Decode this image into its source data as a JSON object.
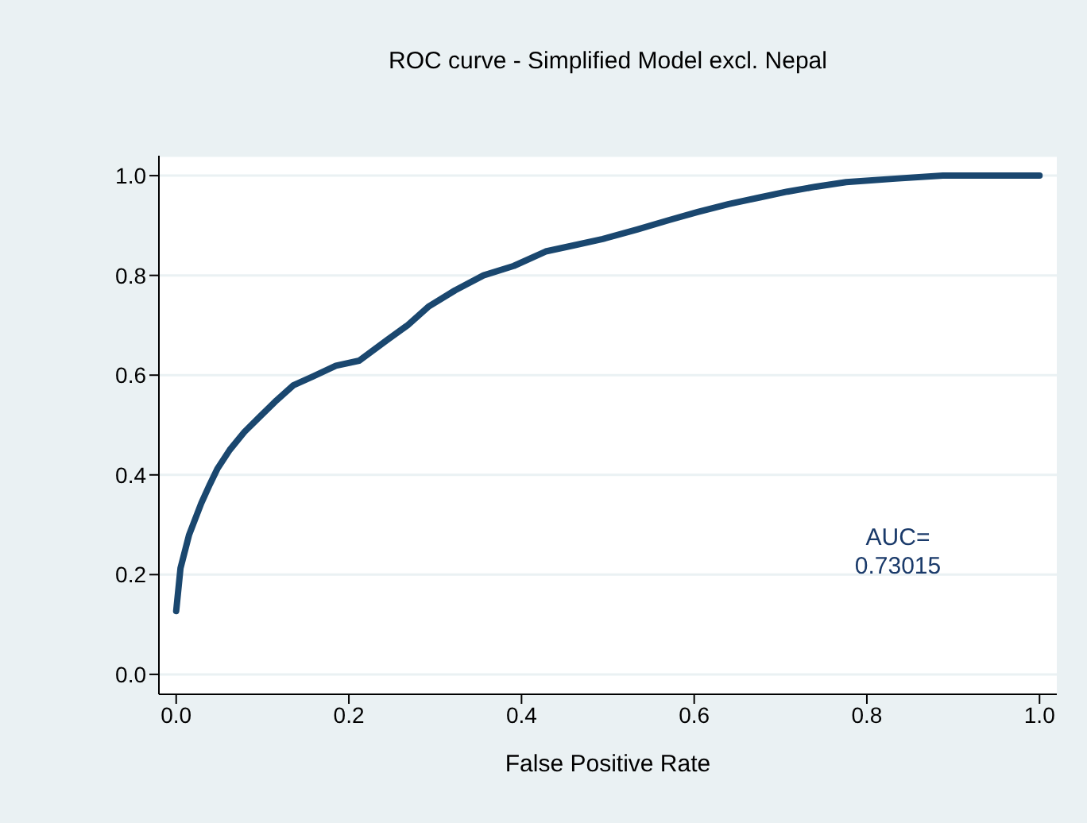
{
  "chart_data": {
    "type": "line",
    "title": "ROC curve - Simplified Model excl. Nepal",
    "xlabel": "False Positive Rate",
    "x": [
      0,
      0.005,
      0.015,
      0.029,
      0.039,
      0.048,
      0.062,
      0.079,
      0.097,
      0.116,
      0.136,
      0.158,
      0.185,
      0.212,
      0.244,
      0.268,
      0.292,
      0.323,
      0.356,
      0.391,
      0.428,
      0.46,
      0.494,
      0.534,
      0.571,
      0.604,
      0.64,
      0.675,
      0.708,
      0.741,
      0.776,
      0.833,
      0.888,
      1
    ],
    "series": [
      {
        "color": "#1a476f",
        "values": [
          0.127,
          0.213,
          0.28,
          0.343,
          0.381,
          0.413,
          0.45,
          0.486,
          0.517,
          0.549,
          0.58,
          0.597,
          0.619,
          0.629,
          0.67,
          0.7,
          0.737,
          0.77,
          0.8,
          0.819,
          0.848,
          0.86,
          0.873,
          0.892,
          0.911,
          0.927,
          0.943,
          0.956,
          0.968,
          0.978,
          0.987,
          0.994,
          1,
          1
        ]
      }
    ],
    "xlim": [
      -0.02,
      1.02
    ],
    "ylim": [
      -0.04,
      1.04
    ],
    "xticks": [
      {
        "value": 0,
        "label": "0.0"
      },
      0.2,
      0.4,
      0.6,
      0.8,
      {
        "value": 1,
        "label": "1.0"
      }
    ],
    "yticks": [
      {
        "value": 0,
        "label": "0.0"
      },
      0.2,
      0.4,
      0.6,
      0.8,
      {
        "value": 1,
        "label": "1.0"
      }
    ],
    "grid": "y",
    "marker": "none",
    "line_style": "solid",
    "legend": false,
    "annotations": [
      "AUC=\n0.73015"
    ]
  }
}
